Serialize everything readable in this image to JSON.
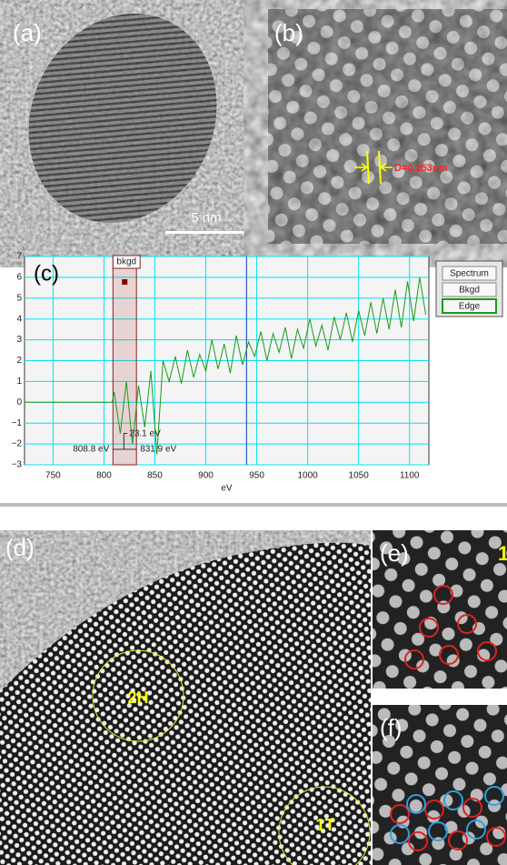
{
  "panels": {
    "a": {
      "label": "(a)",
      "scale_bar": "5 nm"
    },
    "b": {
      "label": "(b)",
      "measurement": "D=0.253nm"
    },
    "d": {
      "label": "(d)",
      "region_2h": "2H",
      "region_1t": "1T"
    },
    "e": {
      "label": "(e)",
      "tag": "1"
    },
    "f": {
      "label": "(f)"
    }
  },
  "chart_data": {
    "type": "line",
    "label": "(c)",
    "xlabel": "eV",
    "xlim": [
      722,
      1119
    ],
    "ylim": [
      -3,
      7
    ],
    "xticks": [
      750,
      800,
      850,
      900,
      950,
      1000,
      1050,
      1100
    ],
    "yticks": [
      {
        "value": -3,
        "label": "−3"
      },
      {
        "value": -2,
        "label": "−2"
      },
      {
        "value": -1,
        "label": "−1"
      },
      0,
      1,
      2,
      3,
      4,
      5,
      6,
      7
    ],
    "grid": true,
    "grid_color": "#00e5ee",
    "x": [
      722,
      808,
      810,
      816,
      822,
      828,
      834,
      840,
      846,
      852,
      858,
      864,
      870,
      876,
      882,
      888,
      894,
      900,
      906,
      912,
      918,
      924,
      930,
      936,
      942,
      948,
      954,
      960,
      966,
      972,
      978,
      984,
      990,
      996,
      1002,
      1008,
      1014,
      1020,
      1026,
      1032,
      1038,
      1044,
      1050,
      1056,
      1062,
      1068,
      1074,
      1080,
      1086,
      1092,
      1098,
      1104,
      1110,
      1116
    ],
    "series": [
      {
        "name": "Spectrum",
        "color": "#1a9a1a",
        "values": [
          0,
          0,
          0.5,
          -1.5,
          1.0,
          -2.0,
          0.8,
          -1.2,
          1.5,
          -2.5,
          2.0,
          1.0,
          2.2,
          0.9,
          2.5,
          1.2,
          2.3,
          1.5,
          3.0,
          1.6,
          2.8,
          1.4,
          3.2,
          1.8,
          2.9,
          2.2,
          3.4,
          2.0,
          3.3,
          2.4,
          3.6,
          2.1,
          3.5,
          2.6,
          4.0,
          2.7,
          3.7,
          2.5,
          4.1,
          3.0,
          4.3,
          2.9,
          4.4,
          3.2,
          4.8,
          3.3,
          5.0,
          3.5,
          5.4,
          3.6,
          5.8,
          3.9,
          6.0,
          4.2
        ]
      }
    ],
    "bkgd_region": {
      "label": "bkgd",
      "start": 808.8,
      "end": 831.9,
      "start_label": "808.8 eV",
      "end_label": "831.9 eV",
      "width_label": "23.1 eV"
    },
    "vline": 940,
    "legend": [
      "Spectrum",
      "Bkgd",
      "Edge"
    ]
  }
}
